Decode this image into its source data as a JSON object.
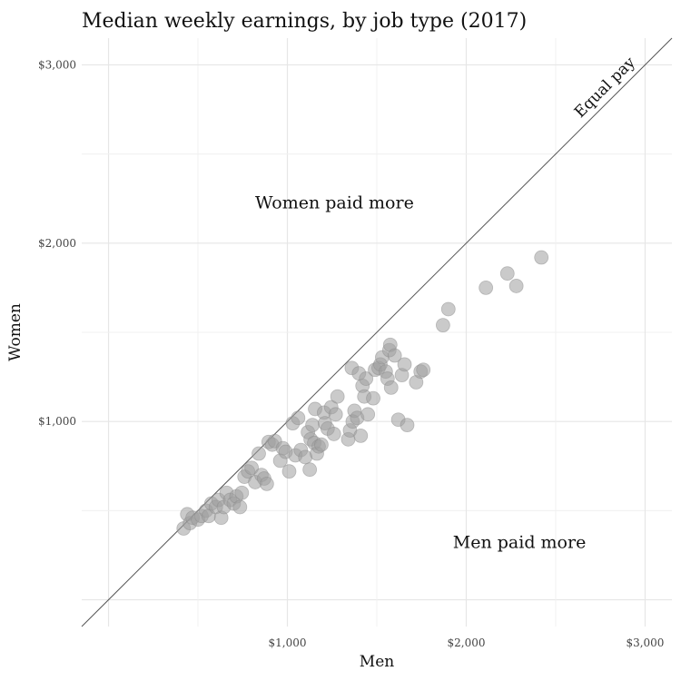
{
  "chart_data": {
    "type": "scatter",
    "title": "Median weekly earnings, by job type (2017)",
    "xlabel": "Men",
    "ylabel": "Women",
    "xlim": [
      -150,
      3150
    ],
    "ylim": [
      -150,
      3150
    ],
    "x_ticks": [
      {
        "value": 1000,
        "label": "$1,000"
      },
      {
        "value": 2000,
        "label": "$2,000"
      },
      {
        "value": 3000,
        "label": "$3,000"
      }
    ],
    "y_ticks": [
      {
        "value": 1000,
        "label": "$1,000"
      },
      {
        "value": 2000,
        "label": "$2,000"
      },
      {
        "value": 3000,
        "label": "$3,000"
      }
    ],
    "grid": true,
    "reference_line": {
      "label": "Equal pay",
      "slope": 1,
      "intercept": 0
    },
    "annotations": [
      {
        "text": "Women paid more",
        "x": 820,
        "y": 2230
      },
      {
        "text": "Men paid more",
        "x": 2230,
        "y": 320
      }
    ],
    "point_color": "#9e9e9e",
    "points": [
      [
        420,
        400
      ],
      [
        455,
        430
      ],
      [
        440,
        480
      ],
      [
        470,
        460
      ],
      [
        500,
        450
      ],
      [
        520,
        470
      ],
      [
        545,
        500
      ],
      [
        560,
        470
      ],
      [
        575,
        540
      ],
      [
        600,
        520
      ],
      [
        615,
        560
      ],
      [
        630,
        460
      ],
      [
        645,
        520
      ],
      [
        660,
        600
      ],
      [
        680,
        560
      ],
      [
        700,
        540
      ],
      [
        715,
        580
      ],
      [
        735,
        520
      ],
      [
        745,
        600
      ],
      [
        760,
        690
      ],
      [
        780,
        720
      ],
      [
        800,
        740
      ],
      [
        820,
        660
      ],
      [
        840,
        820
      ],
      [
        855,
        700
      ],
      [
        870,
        680
      ],
      [
        885,
        650
      ],
      [
        895,
        885
      ],
      [
        915,
        870
      ],
      [
        930,
        890
      ],
      [
        960,
        780
      ],
      [
        975,
        850
      ],
      [
        990,
        830
      ],
      [
        1010,
        720
      ],
      [
        1030,
        990
      ],
      [
        1045,
        810
      ],
      [
        1060,
        1020
      ],
      [
        1075,
        840
      ],
      [
        1100,
        800
      ],
      [
        1115,
        940
      ],
      [
        1125,
        730
      ],
      [
        1130,
        900
      ],
      [
        1140,
        980
      ],
      [
        1150,
        880
      ],
      [
        1155,
        1070
      ],
      [
        1165,
        820
      ],
      [
        1175,
        860
      ],
      [
        1190,
        870
      ],
      [
        1205,
        1050
      ],
      [
        1210,
        990
      ],
      [
        1225,
        960
      ],
      [
        1245,
        1080
      ],
      [
        1260,
        930
      ],
      [
        1270,
        1040
      ],
      [
        1280,
        1140
      ],
      [
        1340,
        900
      ],
      [
        1350,
        950
      ],
      [
        1360,
        1300
      ],
      [
        1365,
        1000
      ],
      [
        1375,
        1060
      ],
      [
        1390,
        1020
      ],
      [
        1400,
        1270
      ],
      [
        1410,
        920
      ],
      [
        1420,
        1200
      ],
      [
        1430,
        1140
      ],
      [
        1440,
        1240
      ],
      [
        1450,
        1040
      ],
      [
        1480,
        1130
      ],
      [
        1490,
        1290
      ],
      [
        1510,
        1300
      ],
      [
        1520,
        1320
      ],
      [
        1530,
        1360
      ],
      [
        1550,
        1280
      ],
      [
        1560,
        1240
      ],
      [
        1570,
        1400
      ],
      [
        1575,
        1430
      ],
      [
        1580,
        1190
      ],
      [
        1600,
        1370
      ],
      [
        1620,
        1010
      ],
      [
        1640,
        1260
      ],
      [
        1655,
        1320
      ],
      [
        1670,
        980
      ],
      [
        1720,
        1220
      ],
      [
        1745,
        1280
      ],
      [
        1760,
        1290
      ],
      [
        1870,
        1540
      ],
      [
        1900,
        1630
      ],
      [
        2110,
        1750
      ],
      [
        2230,
        1830
      ],
      [
        2280,
        1760
      ],
      [
        2420,
        1920
      ]
    ]
  }
}
